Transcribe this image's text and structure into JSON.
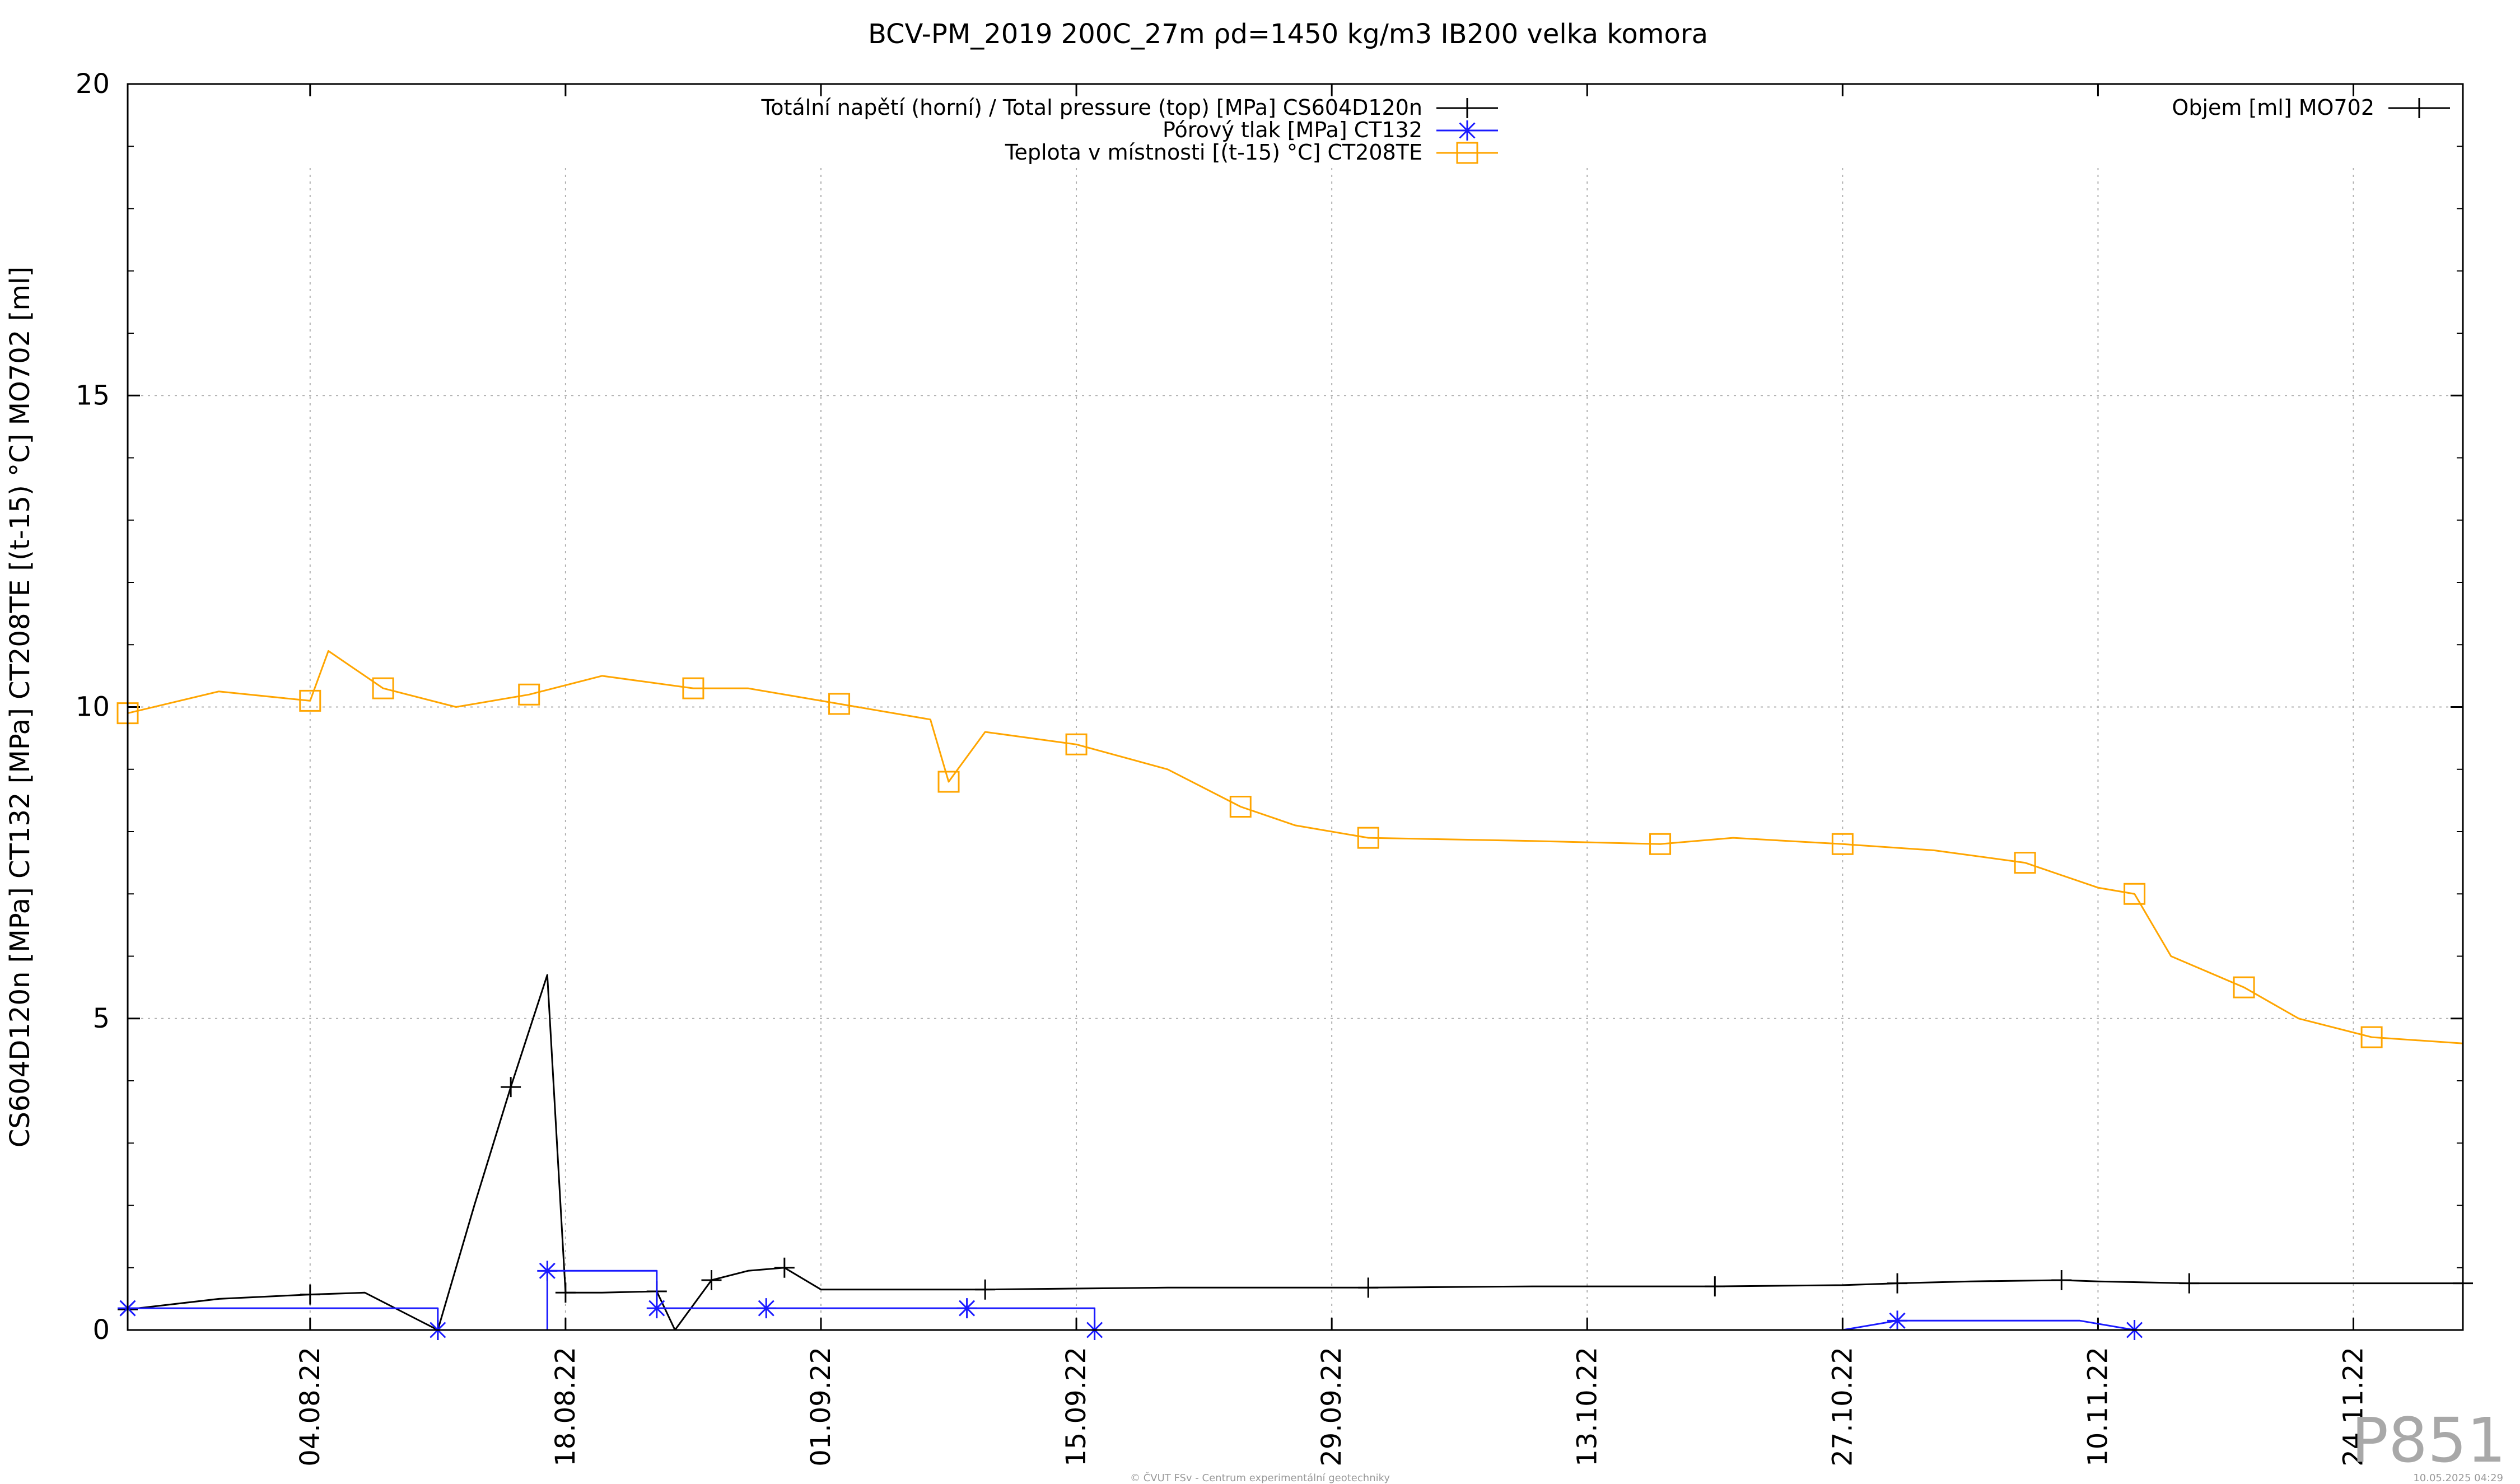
{
  "chart_data": {
    "type": "line",
    "title": "BCV-PM_2019 200C_27m ρd=1450 kg/m3 IB200 velka komora",
    "ylabel": "CS604D120n [MPa] CT132 [MPa] CT208TE [(t-15) °C] MO702 [ml]",
    "xlabel": "",
    "ylim": [
      0,
      20
    ],
    "yticks": [
      0,
      5,
      10,
      15,
      20
    ],
    "y_tick_labels": [
      "0",
      "5",
      "10",
      "15",
      "20"
    ],
    "xlim": [
      "2022-07-25",
      "2022-11-30"
    ],
    "x_tick_labels": [
      "04.08.22",
      "18.08.22",
      "01.09.22",
      "15.09.22",
      "29.09.22",
      "13.10.22",
      "27.10.22",
      "10.11.22",
      "24.11.22"
    ],
    "x_tick_dates": [
      "2022-08-04",
      "2022-08-18",
      "2022-09-01",
      "2022-09-15",
      "2022-09-29",
      "2022-10-13",
      "2022-10-27",
      "2022-11-10",
      "2022-11-24"
    ],
    "grid": true,
    "legend_left_placement": "top-center",
    "legend_right_placement": "top-right",
    "series": [
      {
        "name": "Totální napětí (horní) / Total pressure (top) [MPa] CS604D120n",
        "color": "#000000",
        "marker": "plus",
        "x": [
          "2022-07-25",
          "2022-07-30",
          "2022-08-04",
          "2022-08-07",
          "2022-08-11",
          "2022-08-13",
          "2022-08-15",
          "2022-08-17",
          "2022-08-18",
          "2022-08-20",
          "2022-08-23",
          "2022-08-24",
          "2022-08-26",
          "2022-08-28",
          "2022-08-30",
          "2022-09-01",
          "2022-09-10",
          "2022-09-20",
          "2022-10-01",
          "2022-10-10",
          "2022-10-20",
          "2022-10-27",
          "2022-10-30",
          "2022-11-03",
          "2022-11-08",
          "2022-11-10",
          "2022-11-15",
          "2022-11-24",
          "2022-11-30"
        ],
        "y": [
          0.33,
          0.5,
          0.57,
          0.6,
          0.0,
          2.0,
          3.9,
          5.7,
          0.6,
          0.6,
          0.62,
          0.0,
          0.8,
          0.95,
          1.0,
          0.65,
          0.65,
          0.68,
          0.68,
          0.7,
          0.7,
          0.72,
          0.75,
          0.78,
          0.8,
          0.78,
          0.75,
          0.75,
          0.75
        ]
      },
      {
        "name": "Pórový tlak [MPa] CT132",
        "color": "#1a1aff",
        "marker": "asterisk",
        "x": [
          "2022-07-25",
          "2022-08-11",
          "2022-08-11",
          "2022-08-17",
          "2022-08-17",
          "2022-08-23",
          "2022-08-23",
          "2022-08-29",
          "2022-08-29",
          "2022-09-06",
          "2022-09-09",
          "2022-09-16",
          "2022-09-16",
          "2022-10-27",
          "2022-10-30",
          "2022-11-09",
          "2022-11-12",
          "2022-11-15"
        ],
        "y": [
          0.35,
          0.35,
          0.0,
          0.0,
          0.95,
          0.95,
          0.35,
          0.35,
          0.35,
          0.35,
          0.35,
          0.35,
          0.0,
          0.0,
          0.15,
          0.15,
          0.0,
          0.0
        ]
      },
      {
        "name": "Teplota v místnosti [(t-15) °C] CT208TE",
        "color": "#ffa500",
        "marker": "square",
        "x": [
          "2022-07-25",
          "2022-07-30",
          "2022-08-04",
          "2022-08-05",
          "2022-08-08",
          "2022-08-12",
          "2022-08-16",
          "2022-08-20",
          "2022-08-25",
          "2022-08-28",
          "2022-09-02",
          "2022-09-07",
          "2022-09-08",
          "2022-09-10",
          "2022-09-15",
          "2022-09-20",
          "2022-09-24",
          "2022-09-27",
          "2022-10-01",
          "2022-10-10",
          "2022-10-17",
          "2022-10-21",
          "2022-10-27",
          "2022-11-01",
          "2022-11-06",
          "2022-11-10",
          "2022-11-12",
          "2022-11-14",
          "2022-11-18",
          "2022-11-21",
          "2022-11-25",
          "2022-11-30"
        ],
        "y": [
          9.9,
          10.25,
          10.1,
          10.9,
          10.3,
          10.0,
          10.2,
          10.5,
          10.3,
          10.3,
          10.05,
          9.8,
          8.8,
          9.6,
          9.4,
          9.0,
          8.4,
          8.1,
          7.9,
          7.85,
          7.8,
          7.9,
          7.8,
          7.7,
          7.5,
          7.1,
          7.0,
          6.0,
          5.5,
          5.0,
          4.7,
          4.6
        ]
      },
      {
        "name": "Objem [ml] MO702",
        "color": "#000000",
        "marker": "plus",
        "x": [],
        "y": []
      }
    ]
  },
  "watermark": "P851",
  "footer_left": "© ČVUT FSv - Centrum experimentální geotechniky",
  "footer_right": "10.05.2025 04:29"
}
